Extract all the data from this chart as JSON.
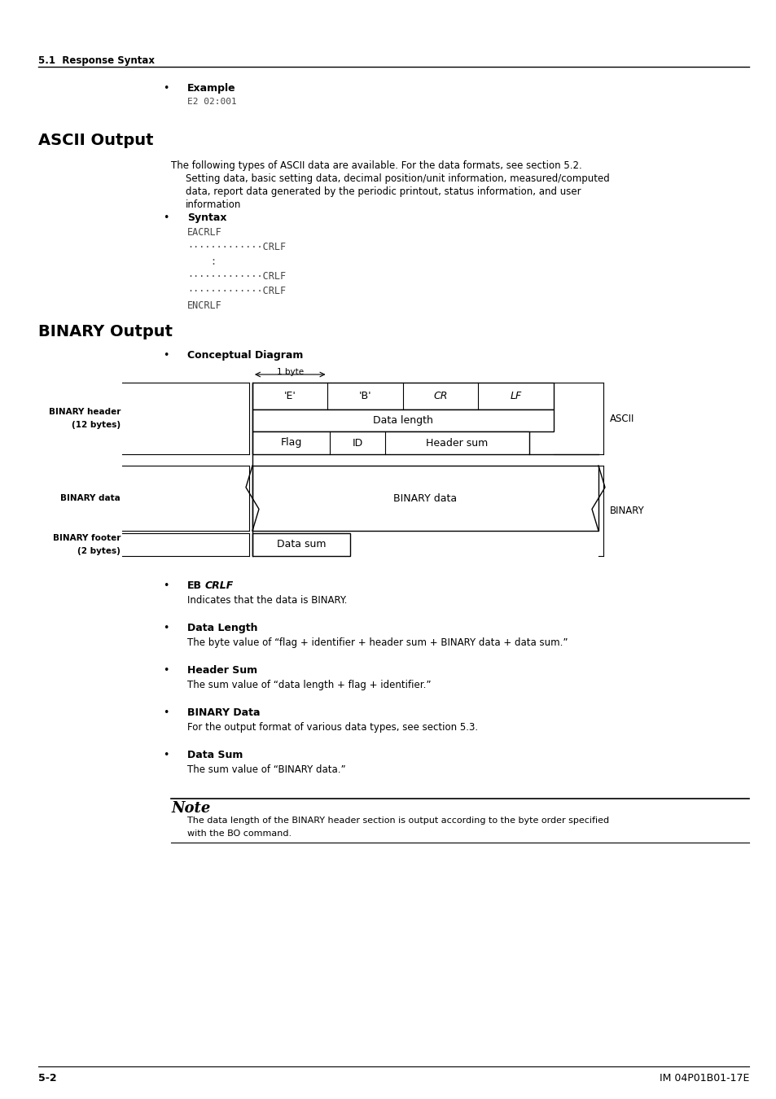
{
  "bg_color": "#ffffff",
  "footer_left": "5-2",
  "footer_right": "IM 04P01B01-17E",
  "section_header": "5.1  Response Syntax"
}
